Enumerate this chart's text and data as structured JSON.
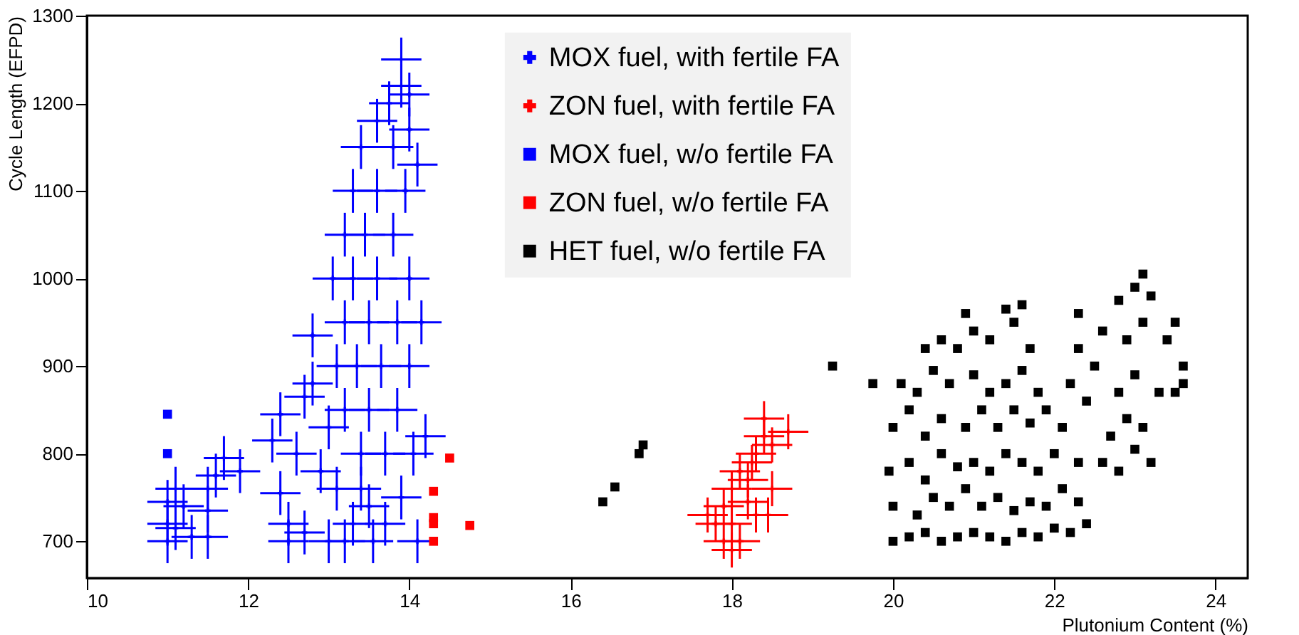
{
  "chart_data": {
    "type": "scatter",
    "xlabel": "Plutonium Content (%)",
    "ylabel": "Cycle Length (EFPD)",
    "xlim": [
      10,
      24.4
    ],
    "ylim": [
      658,
      1300
    ],
    "xticks": [
      10,
      12,
      14,
      16,
      18,
      20,
      22,
      24
    ],
    "yticks": [
      700,
      800,
      900,
      1000,
      1100,
      1200,
      1300
    ],
    "grid": false,
    "legend": "top",
    "series": [
      {
        "name": "MOX fuel, with fertile FA",
        "color": "#0000ff",
        "marker": "cross",
        "x": [
          11.0,
          11.0,
          11.0,
          11.1,
          11.2,
          11.1,
          11.3,
          11.5,
          11.5,
          11.5,
          11.6,
          11.7,
          11.9,
          12.3,
          12.4,
          12.4,
          12.5,
          12.5,
          12.6,
          12.7,
          12.7,
          12.8,
          12.8,
          12.9,
          13.0,
          13.0,
          13.05,
          13.1,
          13.1,
          13.2,
          13.2,
          13.2,
          13.3,
          13.3,
          13.3,
          13.35,
          13.4,
          13.4,
          13.45,
          13.5,
          13.5,
          13.5,
          13.55,
          13.6,
          13.6,
          13.6,
          13.65,
          13.7,
          13.7,
          13.75,
          13.8,
          13.8,
          13.85,
          13.85,
          13.9,
          13.9,
          13.95,
          14.0,
          14.0,
          14.0,
          14.05,
          14.1,
          14.1,
          14.15,
          14.2,
          13.9,
          13.4,
          13.2,
          14.0
        ],
        "values": [
          700,
          720,
          745,
          760,
          740,
          715,
          705,
          705,
          735,
          760,
          775,
          795,
          780,
          815,
          845,
          755,
          700,
          720,
          800,
          865,
          710,
          935,
          880,
          780,
          830,
          700,
          1000,
          900,
          760,
          1050,
          950,
          850,
          720,
          1100,
          1000,
          900,
          800,
          1150,
          1050,
          950,
          850,
          740,
          700,
          1180,
          1100,
          1000,
          900,
          800,
          720,
          1200,
          1150,
          1050,
          950,
          850,
          1250,
          750,
          1100,
          1210,
          1000,
          900,
          800,
          1130,
          700,
          950,
          820,
          1220,
          760,
          700,
          1170
        ],
        "xerrors": [
          0.25,
          0.25,
          0.25,
          0.25,
          0.25,
          0.25,
          0.25,
          0.25,
          0.25,
          0.25,
          0.25,
          0.25,
          0.25,
          0.25,
          0.25,
          0.25,
          0.25,
          0.25,
          0.25,
          0.25,
          0.25,
          0.25,
          0.25,
          0.25,
          0.25,
          0.25,
          0.25,
          0.25,
          0.25,
          0.25,
          0.25,
          0.25,
          0.25,
          0.25,
          0.25,
          0.25,
          0.25,
          0.25,
          0.25,
          0.25,
          0.25,
          0.25,
          0.25,
          0.25,
          0.25,
          0.25,
          0.25,
          0.25,
          0.25,
          0.25,
          0.25,
          0.25,
          0.25,
          0.25,
          0.25,
          0.25,
          0.25,
          0.25,
          0.25,
          0.25,
          0.25,
          0.25,
          0.25,
          0.25,
          0.25,
          0.25,
          0.25,
          0.25,
          0.25
        ],
        "errors": [
          25,
          25,
          25,
          25,
          25,
          25,
          25,
          25,
          25,
          25,
          25,
          25,
          25,
          25,
          25,
          25,
          25,
          25,
          25,
          25,
          25,
          25,
          25,
          25,
          25,
          25,
          25,
          25,
          25,
          25,
          25,
          25,
          25,
          25,
          25,
          25,
          25,
          25,
          25,
          25,
          25,
          25,
          25,
          25,
          25,
          25,
          25,
          25,
          25,
          25,
          25,
          25,
          25,
          25,
          25,
          25,
          25,
          25,
          25,
          25,
          25,
          25,
          25,
          25,
          25,
          25,
          25,
          25,
          25
        ]
      },
      {
        "name": "ZON fuel, with fertile FA",
        "color": "#ff0000",
        "marker": "cross",
        "x": [
          17.8,
          17.9,
          17.9,
          18.0,
          18.0,
          18.1,
          18.1,
          18.2,
          18.2,
          18.3,
          18.3,
          18.4,
          18.4,
          18.5,
          18.5,
          18.7,
          17.7,
          18.0,
          18.25,
          18.45
        ],
        "values": [
          720,
          700,
          740,
          760,
          720,
          780,
          700,
          745,
          770,
          800,
          730,
          820,
          840,
          810,
          760,
          825,
          730,
          690,
          790,
          730
        ],
        "xerrors": [
          0.25,
          0.25,
          0.25,
          0.25,
          0.25,
          0.25,
          0.25,
          0.25,
          0.25,
          0.25,
          0.25,
          0.25,
          0.25,
          0.25,
          0.25,
          0.25,
          0.25,
          0.25,
          0.25,
          0.25
        ],
        "errors": [
          20,
          20,
          20,
          20,
          20,
          20,
          20,
          20,
          20,
          20,
          20,
          20,
          20,
          20,
          20,
          20,
          20,
          20,
          20,
          20
        ]
      },
      {
        "name": "MOX fuel, w/o fertile FA",
        "color": "#0000ff",
        "marker": "square",
        "x": [
          11.0,
          11.0
        ],
        "values": [
          845,
          800
        ]
      },
      {
        "name": "ZON fuel, w/o fertile FA",
        "color": "#ff0000",
        "marker": "square",
        "x": [
          14.5,
          14.3,
          14.3,
          14.3,
          14.75,
          14.3
        ],
        "values": [
          795,
          757,
          727,
          720,
          718,
          700
        ]
      },
      {
        "name": "HET fuel, w/o fertile FA",
        "color": "#000000",
        "marker": "square",
        "x": [
          16.4,
          16.55,
          16.85,
          16.9,
          19.25,
          19.75,
          20.0,
          20.2,
          20.4,
          20.6,
          20.8,
          21.0,
          21.2,
          21.4,
          21.6,
          21.8,
          22.0,
          22.2,
          22.4,
          20.0,
          20.3,
          20.5,
          20.7,
          20.9,
          21.1,
          21.3,
          21.5,
          21.7,
          21.9,
          22.1,
          22.3,
          19.95,
          20.2,
          20.4,
          20.6,
          20.8,
          21.0,
          21.2,
          21.4,
          21.6,
          21.8,
          22.0,
          22.3,
          22.6,
          22.8,
          23.0,
          23.2,
          20.0,
          20.2,
          20.4,
          20.6,
          20.9,
          21.1,
          21.3,
          21.5,
          21.7,
          21.9,
          22.1,
          22.4,
          22.7,
          22.9,
          23.1,
          20.1,
          20.3,
          20.5,
          20.7,
          21.0,
          21.2,
          21.4,
          21.6,
          21.8,
          22.2,
          22.5,
          22.8,
          23.0,
          23.3,
          23.6,
          20.4,
          20.6,
          20.8,
          21.0,
          21.2,
          21.5,
          21.7,
          22.3,
          22.6,
          22.9,
          23.1,
          23.4,
          20.9,
          21.4,
          21.6,
          22.3,
          22.8,
          23.0,
          23.1,
          23.2,
          23.5,
          23.6,
          23.5
        ],
        "values": [
          745,
          762,
          800,
          810,
          900,
          880,
          700,
          705,
          710,
          700,
          705,
          710,
          705,
          700,
          710,
          705,
          715,
          710,
          720,
          740,
          730,
          750,
          740,
          760,
          740,
          750,
          735,
          745,
          740,
          760,
          745,
          780,
          790,
          770,
          800,
          785,
          790,
          780,
          800,
          790,
          780,
          800,
          790,
          790,
          780,
          805,
          790,
          830,
          850,
          820,
          840,
          830,
          850,
          830,
          850,
          835,
          850,
          830,
          860,
          820,
          840,
          830,
          880,
          870,
          895,
          880,
          890,
          870,
          880,
          895,
          870,
          880,
          900,
          870,
          890,
          870,
          900,
          920,
          930,
          920,
          940,
          930,
          950,
          920,
          920,
          940,
          930,
          950,
          930,
          960,
          965,
          970,
          960,
          975,
          990,
          1005,
          980,
          950,
          880,
          870
        ]
      }
    ]
  }
}
